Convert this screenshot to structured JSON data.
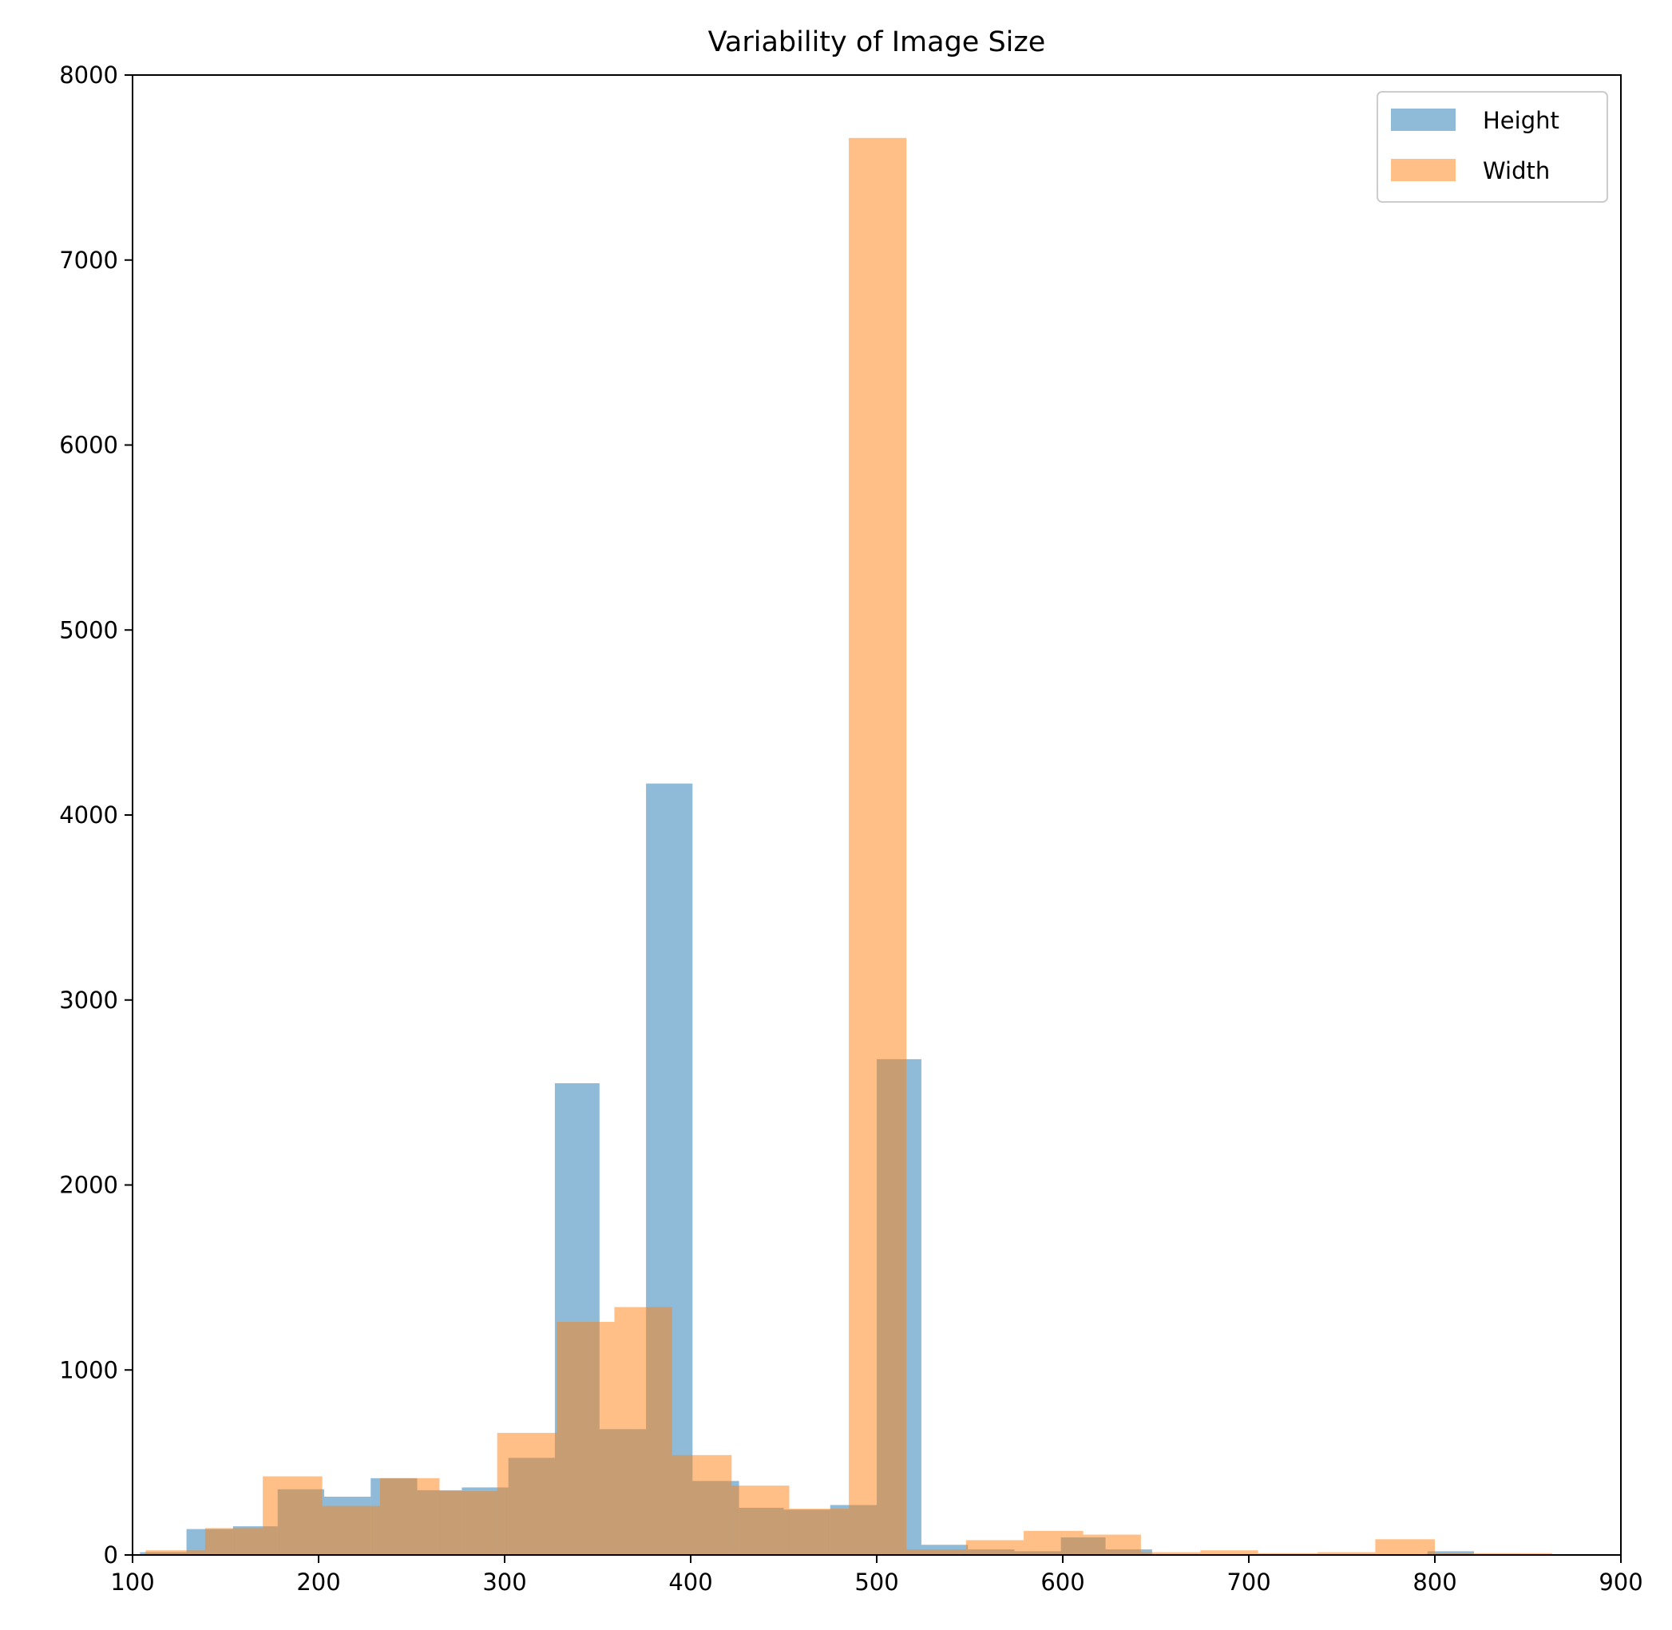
{
  "chart_data": {
    "type": "bar",
    "title": "Variability of Image Size",
    "xlabel": "",
    "ylabel": "",
    "xlim": [
      100,
      900
    ],
    "ylim": [
      0,
      8000
    ],
    "x_ticks": [
      100,
      200,
      300,
      400,
      500,
      600,
      700,
      800,
      900
    ],
    "y_ticks": [
      0,
      1000,
      2000,
      3000,
      4000,
      5000,
      6000,
      7000,
      8000
    ],
    "grid": false,
    "legend_position": "top-right",
    "series": [
      {
        "name": "Height",
        "color": "#1f77b4",
        "opacity": 0.5,
        "bins": [
          {
            "x0": 104,
            "x1": 129,
            "value": 15
          },
          {
            "x0": 129,
            "x1": 154,
            "value": 140
          },
          {
            "x0": 154,
            "x1": 178,
            "value": 155
          },
          {
            "x0": 178,
            "x1": 203,
            "value": 355
          },
          {
            "x0": 203,
            "x1": 228,
            "value": 315
          },
          {
            "x0": 228,
            "x1": 253,
            "value": 415
          },
          {
            "x0": 253,
            "x1": 277,
            "value": 350
          },
          {
            "x0": 277,
            "x1": 302,
            "value": 365
          },
          {
            "x0": 302,
            "x1": 327,
            "value": 525
          },
          {
            "x0": 327,
            "x1": 351,
            "value": 2550
          },
          {
            "x0": 351,
            "x1": 376,
            "value": 680
          },
          {
            "x0": 376,
            "x1": 401,
            "value": 4170
          },
          {
            "x0": 401,
            "x1": 426,
            "value": 400
          },
          {
            "x0": 426,
            "x1": 450,
            "value": 255
          },
          {
            "x0": 450,
            "x1": 475,
            "value": 245
          },
          {
            "x0": 475,
            "x1": 500,
            "value": 270
          },
          {
            "x0": 500,
            "x1": 524,
            "value": 2680
          },
          {
            "x0": 524,
            "x1": 549,
            "value": 55
          },
          {
            "x0": 549,
            "x1": 574,
            "value": 30
          },
          {
            "x0": 574,
            "x1": 599,
            "value": 20
          },
          {
            "x0": 599,
            "x1": 623,
            "value": 95
          },
          {
            "x0": 623,
            "x1": 648,
            "value": 30
          },
          {
            "x0": 648,
            "x1": 673,
            "value": 5
          },
          {
            "x0": 673,
            "x1": 698,
            "value": 5
          },
          {
            "x0": 698,
            "x1": 722,
            "value": 5
          },
          {
            "x0": 722,
            "x1": 747,
            "value": 5
          },
          {
            "x0": 747,
            "x1": 772,
            "value": 5
          },
          {
            "x0": 772,
            "x1": 796,
            "value": 5
          },
          {
            "x0": 796,
            "x1": 821,
            "value": 20
          },
          {
            "x0": 821,
            "x1": 846,
            "value": 5
          }
        ]
      },
      {
        "name": "Width",
        "color": "#ff7f0e",
        "opacity": 0.5,
        "bins": [
          {
            "x0": 107,
            "x1": 139,
            "value": 25
          },
          {
            "x0": 139,
            "x1": 170,
            "value": 145
          },
          {
            "x0": 170,
            "x1": 202,
            "value": 425
          },
          {
            "x0": 202,
            "x1": 233,
            "value": 265
          },
          {
            "x0": 233,
            "x1": 265,
            "value": 415
          },
          {
            "x0": 265,
            "x1": 296,
            "value": 345
          },
          {
            "x0": 296,
            "x1": 328,
            "value": 660
          },
          {
            "x0": 328,
            "x1": 359,
            "value": 1260
          },
          {
            "x0": 359,
            "x1": 390,
            "value": 1340
          },
          {
            "x0": 390,
            "x1": 422,
            "value": 540
          },
          {
            "x0": 422,
            "x1": 453,
            "value": 375
          },
          {
            "x0": 453,
            "x1": 485,
            "value": 250
          },
          {
            "x0": 485,
            "x1": 516,
            "value": 7660
          },
          {
            "x0": 516,
            "x1": 548,
            "value": 30
          },
          {
            "x0": 548,
            "x1": 579,
            "value": 80
          },
          {
            "x0": 579,
            "x1": 611,
            "value": 130
          },
          {
            "x0": 611,
            "x1": 642,
            "value": 110
          },
          {
            "x0": 642,
            "x1": 674,
            "value": 15
          },
          {
            "x0": 674,
            "x1": 705,
            "value": 25
          },
          {
            "x0": 705,
            "x1": 737,
            "value": 10
          },
          {
            "x0": 737,
            "x1": 768,
            "value": 15
          },
          {
            "x0": 768,
            "x1": 800,
            "value": 85
          },
          {
            "x0": 800,
            "x1": 831,
            "value": 10
          },
          {
            "x0": 831,
            "x1": 863,
            "value": 10
          }
        ]
      }
    ]
  }
}
